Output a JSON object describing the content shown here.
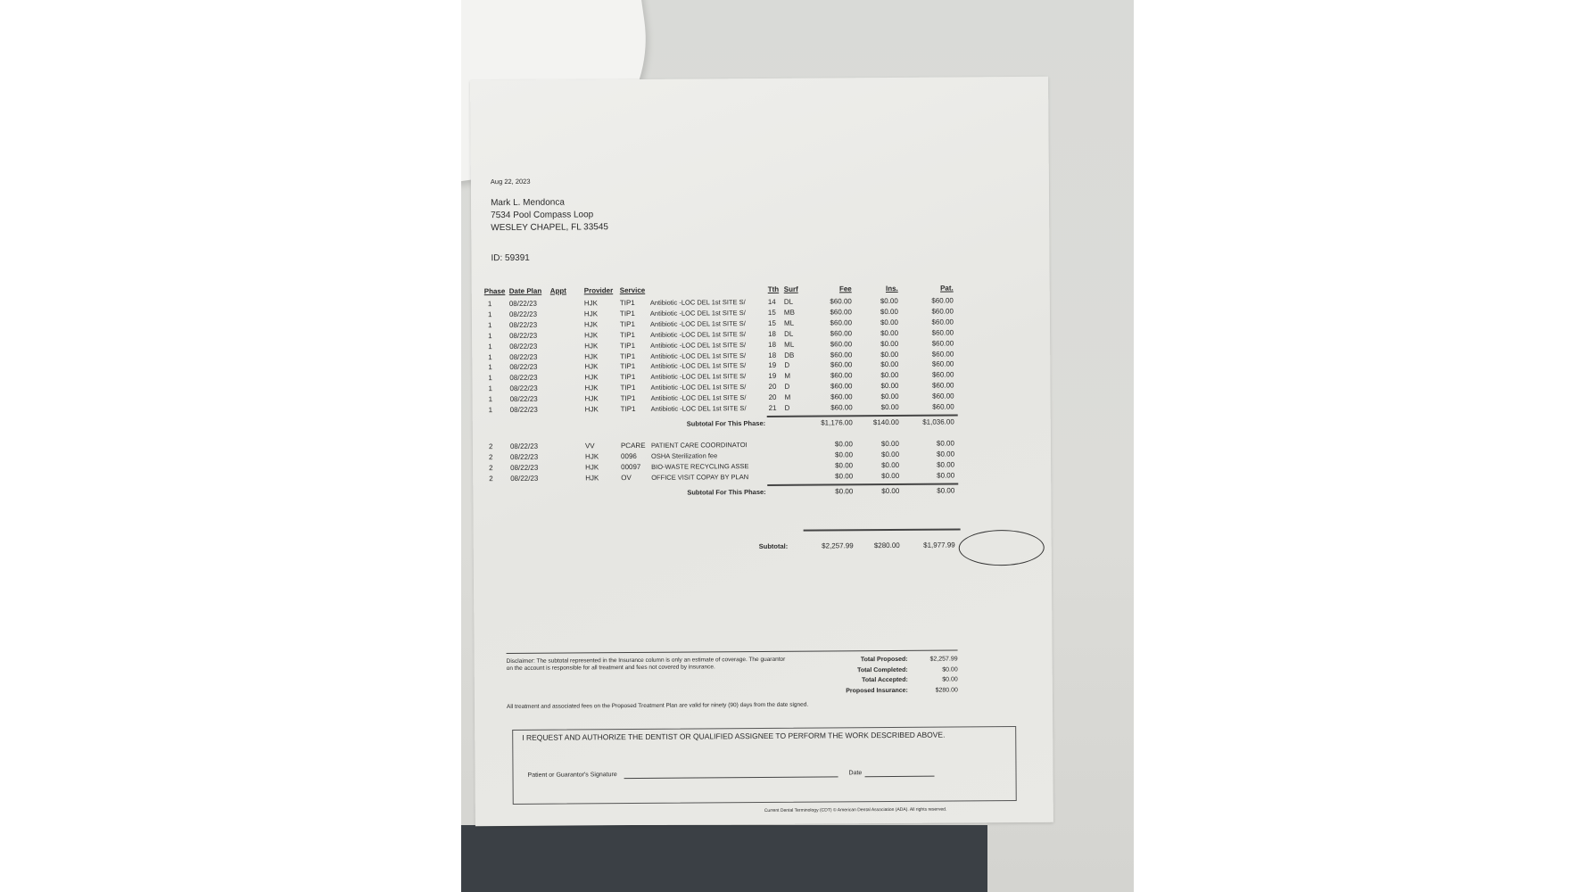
{
  "date": "Aug 22, 2023",
  "patient": {
    "name": "Mark L. Mendonca",
    "address1": "7534 Pool Compass Loop",
    "address2": "WESLEY CHAPEL, FL  33545",
    "id": "ID: 59391"
  },
  "headers": {
    "phase": "Phase",
    "date_plan": "Date Plan",
    "appt": "Appt",
    "provider": "Provider",
    "service": "Service",
    "tth": "Tth",
    "surf": "Surf",
    "fee": "Fee",
    "ins": "Ins.",
    "pat": "Pat."
  },
  "phase1": [
    {
      "phase": "1",
      "date": "08/22/23",
      "provider": "HJK",
      "service": "TIP1",
      "desc": "Antibiotic -LOC DEL 1st SITE S/",
      "tth": "14",
      "surf": "DL",
      "fee": "$60.00",
      "ins": "$0.00",
      "pat": "$60.00"
    },
    {
      "phase": "1",
      "date": "08/22/23",
      "provider": "HJK",
      "service": "TIP1",
      "desc": "Antibiotic -LOC DEL 1st SITE S/",
      "tth": "15",
      "surf": "MB",
      "fee": "$60.00",
      "ins": "$0.00",
      "pat": "$60.00"
    },
    {
      "phase": "1",
      "date": "08/22/23",
      "provider": "HJK",
      "service": "TIP1",
      "desc": "Antibiotic -LOC DEL 1st SITE S/",
      "tth": "15",
      "surf": "ML",
      "fee": "$60.00",
      "ins": "$0.00",
      "pat": "$60.00"
    },
    {
      "phase": "1",
      "date": "08/22/23",
      "provider": "HJK",
      "service": "TIP1",
      "desc": "Antibiotic -LOC DEL 1st SITE S/",
      "tth": "18",
      "surf": "DL",
      "fee": "$60.00",
      "ins": "$0.00",
      "pat": "$60.00"
    },
    {
      "phase": "1",
      "date": "08/22/23",
      "provider": "HJK",
      "service": "TIP1",
      "desc": "Antibiotic -LOC DEL 1st SITE S/",
      "tth": "18",
      "surf": "ML",
      "fee": "$60.00",
      "ins": "$0.00",
      "pat": "$60.00"
    },
    {
      "phase": "1",
      "date": "08/22/23",
      "provider": "HJK",
      "service": "TIP1",
      "desc": "Antibiotic -LOC DEL 1st SITE S/",
      "tth": "18",
      "surf": "DB",
      "fee": "$60.00",
      "ins": "$0.00",
      "pat": "$60.00"
    },
    {
      "phase": "1",
      "date": "08/22/23",
      "provider": "HJK",
      "service": "TIP1",
      "desc": "Antibiotic -LOC DEL 1st SITE S/",
      "tth": "19",
      "surf": "D",
      "fee": "$60.00",
      "ins": "$0.00",
      "pat": "$60.00"
    },
    {
      "phase": "1",
      "date": "08/22/23",
      "provider": "HJK",
      "service": "TIP1",
      "desc": "Antibiotic -LOC DEL 1st SITE S/",
      "tth": "19",
      "surf": "M",
      "fee": "$60.00",
      "ins": "$0.00",
      "pat": "$60.00"
    },
    {
      "phase": "1",
      "date": "08/22/23",
      "provider": "HJK",
      "service": "TIP1",
      "desc": "Antibiotic -LOC DEL 1st SITE S/",
      "tth": "20",
      "surf": "D",
      "fee": "$60.00",
      "ins": "$0.00",
      "pat": "$60.00"
    },
    {
      "phase": "1",
      "date": "08/22/23",
      "provider": "HJK",
      "service": "TIP1",
      "desc": "Antibiotic -LOC DEL 1st SITE S/",
      "tth": "20",
      "surf": "M",
      "fee": "$60.00",
      "ins": "$0.00",
      "pat": "$60.00"
    },
    {
      "phase": "1",
      "date": "08/22/23",
      "provider": "HJK",
      "service": "TIP1",
      "desc": "Antibiotic -LOC DEL 1st SITE S/",
      "tth": "21",
      "surf": "D",
      "fee": "$60.00",
      "ins": "$0.00",
      "pat": "$60.00"
    }
  ],
  "phase1_subtotal": {
    "label": "Subtotal For This Phase:",
    "fee": "$1,176.00",
    "ins": "$140.00",
    "pat": "$1,036.00"
  },
  "phase2": [
    {
      "phase": "2",
      "date": "08/22/23",
      "provider": "VV",
      "service": "PCARE",
      "desc": "PATIENT CARE COORDINATOI",
      "tth": "",
      "surf": "",
      "fee": "$0.00",
      "ins": "$0.00",
      "pat": "$0.00"
    },
    {
      "phase": "2",
      "date": "08/22/23",
      "provider": "HJK",
      "service": "0096",
      "desc": "OSHA Sterilization fee",
      "tth": "",
      "surf": "",
      "fee": "$0.00",
      "ins": "$0.00",
      "pat": "$0.00"
    },
    {
      "phase": "2",
      "date": "08/22/23",
      "provider": "HJK",
      "service": "00097",
      "desc": "BIO-WASTE RECYCLING ASSE",
      "tth": "",
      "surf": "",
      "fee": "$0.00",
      "ins": "$0.00",
      "pat": "$0.00"
    },
    {
      "phase": "2",
      "date": "08/22/23",
      "provider": "HJK",
      "service": "OV",
      "desc": "OFFICE VISIT COPAY BY PLAN",
      "tth": "",
      "surf": "",
      "fee": "$0.00",
      "ins": "$0.00",
      "pat": "$0.00"
    }
  ],
  "phase2_subtotal": {
    "label": "Subtotal For This Phase:",
    "fee": "$0.00",
    "ins": "$0.00",
    "pat": "$0.00"
  },
  "subtotal": {
    "label": "Subtotal:",
    "fee": "$2,257.99",
    "ins": "$280.00",
    "pat": "$1,977.99"
  },
  "disclaimer": "Disclaimer: The subtotal represented in the Insurance column is only an estimate of coverage. The guarantor on the account is responsible for all treatment and fees not covered by insurance.",
  "totals": [
    {
      "label": "Total Proposed:",
      "value": "$2,257.99"
    },
    {
      "label": "Total Completed:",
      "value": "$0.00"
    },
    {
      "label": "Total Accepted:",
      "value": "$0.00"
    },
    {
      "label": "Proposed Insurance:",
      "value": "$280.00"
    }
  ],
  "validity": "All treatment and associated fees on the Proposed Treatment Plan are valid for ninety (90) days from the date signed.",
  "authorization": "I REQUEST AND AUTHORIZE THE DENTIST OR QUALIFIED ASSIGNEE TO PERFORM THE WORK DESCRIBED ABOVE.",
  "signature_label": "Patient or Guarantor's Signature",
  "date_label": "Date",
  "footer": "Current Dental Terminology (CDT) © American Dental Association (ADA). All rights reserved."
}
